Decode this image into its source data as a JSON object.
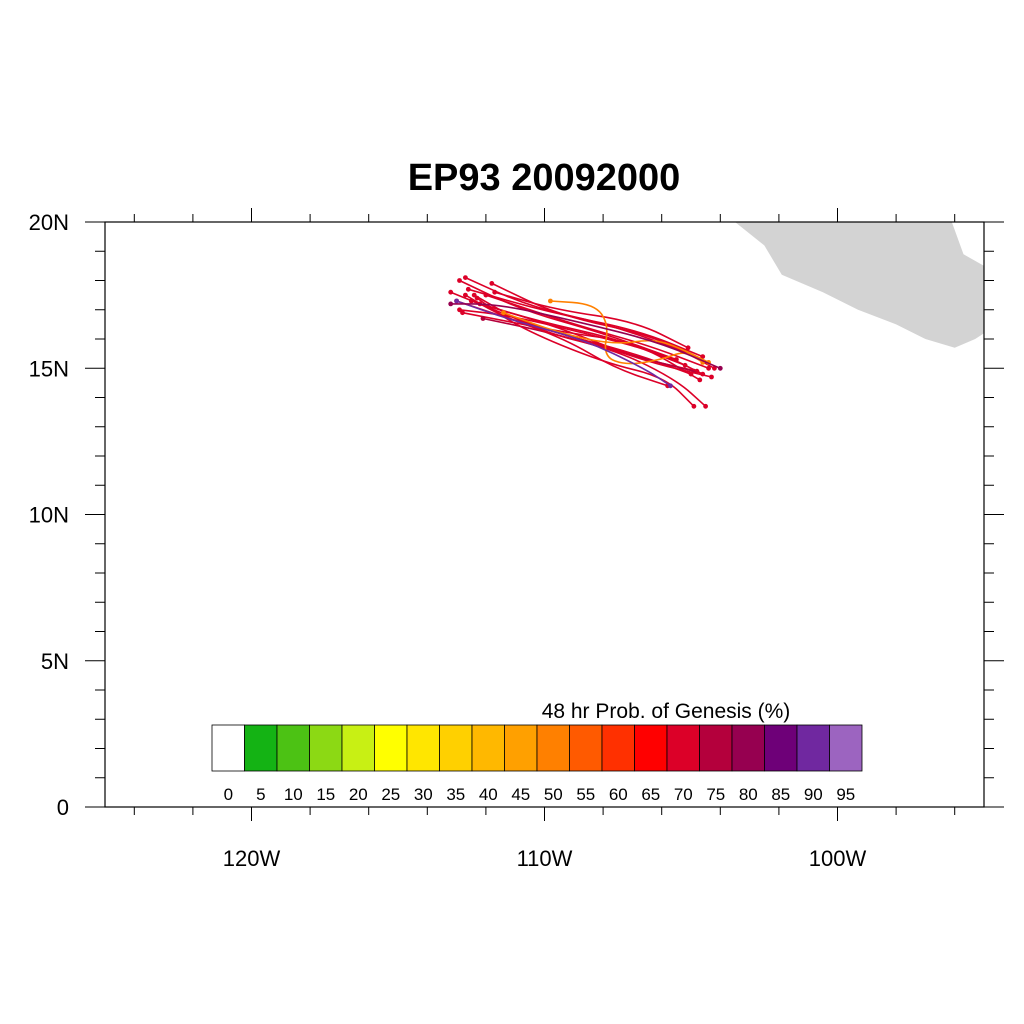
{
  "title": "EP93 20092000",
  "map": {
    "lon_range": [
      -125,
      -95
    ],
    "lat_range": [
      0,
      20
    ],
    "lat_ticks": [
      {
        "value": 20,
        "label": "20N"
      },
      {
        "value": 15,
        "label": "15N"
      },
      {
        "value": 10,
        "label": "10N"
      },
      {
        "value": 5,
        "label": "5N"
      },
      {
        "value": 0,
        "label": "0"
      }
    ],
    "lon_ticks": [
      {
        "value": -120,
        "label": "120W"
      },
      {
        "value": -110,
        "label": "110W"
      },
      {
        "value": -100,
        "label": "100W"
      }
    ],
    "land_color": "#d3d3d3",
    "land_outline": [
      [
        -103.5,
        20
      ],
      [
        -102.5,
        19.2
      ],
      [
        -101.9,
        18.2
      ],
      [
        -100.5,
        17.6
      ],
      [
        -99.3,
        17.0
      ],
      [
        -98.0,
        16.5
      ],
      [
        -97.0,
        16.0
      ],
      [
        -96.0,
        15.7
      ],
      [
        -95.3,
        16.0
      ],
      [
        -95.0,
        16.2
      ],
      [
        -95.0,
        18.5
      ],
      [
        -95.7,
        18.9
      ],
      [
        -96.1,
        20
      ]
    ]
  },
  "colorbar": {
    "title": "48 hr Prob. of Genesis (%)",
    "labels": [
      "0",
      "5",
      "10",
      "15",
      "20",
      "25",
      "30",
      "35",
      "40",
      "45",
      "50",
      "55",
      "60",
      "65",
      "70",
      "75",
      "80",
      "85",
      "90",
      "95"
    ],
    "colors": [
      "#ffffff",
      "#14b314",
      "#4cc214",
      "#8cd914",
      "#c8f014",
      "#ffff00",
      "#ffe600",
      "#ffd000",
      "#ffb800",
      "#ffa000",
      "#ff8000",
      "#ff5a00",
      "#ff3000",
      "#ff0000",
      "#dc0028",
      "#b4003c",
      "#960050",
      "#6e0078",
      "#7028a0",
      "#9c64c0"
    ]
  },
  "tracks": [
    {
      "color": "#dc0028",
      "points": [
        [
          -105.2,
          15.1
        ],
        [
          -107.5,
          16.0
        ],
        [
          -110.2,
          16.6
        ],
        [
          -112.5,
          17.3
        ]
      ]
    },
    {
      "color": "#dc0028",
      "points": [
        [
          -104.8,
          14.9
        ],
        [
          -107.0,
          15.4
        ],
        [
          -109.5,
          16.4
        ],
        [
          -112.2,
          17.2
        ]
      ]
    },
    {
      "color": "#dc0028",
      "points": [
        [
          -105.5,
          15.3
        ],
        [
          -108.0,
          16.2
        ],
        [
          -110.8,
          17.0
        ],
        [
          -112.9,
          18.0
        ]
      ]
    },
    {
      "color": "#dc0028",
      "points": [
        [
          -104.6,
          15.4
        ],
        [
          -106.8,
          16.3
        ],
        [
          -109.8,
          16.9
        ],
        [
          -112.6,
          17.7
        ]
      ]
    },
    {
      "color": "#dc0028",
      "points": [
        [
          -104.4,
          15.0
        ],
        [
          -106.5,
          15.8
        ],
        [
          -109.0,
          16.5
        ],
        [
          -112.0,
          17.5
        ]
      ]
    },
    {
      "color": "#dc0028",
      "points": [
        [
          -105.0,
          14.8
        ],
        [
          -107.2,
          15.6
        ],
        [
          -110.0,
          16.3
        ],
        [
          -113.2,
          17.6
        ]
      ]
    },
    {
      "color": "#dc0028",
      "points": [
        [
          -104.7,
          14.6
        ],
        [
          -106.9,
          15.9
        ],
        [
          -109.2,
          16.2
        ],
        [
          -112.8,
          16.9
        ]
      ]
    },
    {
      "color": "#dc0028",
      "points": [
        [
          -105.3,
          15.6
        ],
        [
          -107.8,
          16.5
        ],
        [
          -110.5,
          17.1
        ],
        [
          -112.7,
          18.1
        ]
      ]
    },
    {
      "color": "#dc0028",
      "points": [
        [
          -104.2,
          15.0
        ],
        [
          -106.2,
          16.1
        ],
        [
          -109.5,
          16.8
        ],
        [
          -111.8,
          17.9
        ]
      ]
    },
    {
      "color": "#b4003c",
      "points": [
        [
          -104.9,
          14.9
        ],
        [
          -107.3,
          15.5
        ],
        [
          -109.7,
          16.2
        ],
        [
          -112.1,
          16.7
        ]
      ]
    },
    {
      "color": "#dc0028",
      "points": [
        [
          -104.5,
          13.7
        ],
        [
          -105.5,
          14.6
        ],
        [
          -107.5,
          15.6
        ],
        [
          -110.3,
          16.3
        ],
        [
          -112.4,
          17.5
        ]
      ]
    },
    {
      "color": "#dc0028",
      "points": [
        [
          -104.9,
          13.7
        ],
        [
          -105.9,
          14.7
        ],
        [
          -108.0,
          15.2
        ],
        [
          -110.9,
          16.4
        ],
        [
          -112.3,
          17.4
        ]
      ]
    },
    {
      "color": "#dc0028",
      "points": [
        [
          -105.8,
          14.4
        ],
        [
          -107.6,
          15.0
        ],
        [
          -109.3,
          16.0
        ],
        [
          -111.5,
          16.8
        ],
        [
          -112.7,
          17.5
        ]
      ]
    },
    {
      "color": "#dc0028",
      "points": [
        [
          -104.3,
          14.7
        ],
        [
          -106.4,
          15.2
        ],
        [
          -108.4,
          15.9
        ],
        [
          -110.6,
          16.5
        ],
        [
          -113.0,
          17.3
        ]
      ]
    },
    {
      "color": "#dc0028",
      "points": [
        [
          -105.1,
          15.7
        ],
        [
          -106.9,
          16.6
        ],
        [
          -109.6,
          17.0
        ],
        [
          -111.7,
          17.6
        ]
      ]
    },
    {
      "color": "#dc0028",
      "points": [
        [
          -104.6,
          14.8
        ],
        [
          -106.0,
          15.5
        ],
        [
          -108.6,
          16.2
        ],
        [
          -111.2,
          16.8
        ],
        [
          -112.9,
          17.0
        ]
      ]
    },
    {
      "color": "#ff8000",
      "points": [
        [
          -104.6,
          15.2
        ],
        [
          -105.2,
          15.6
        ],
        [
          -106.0,
          15.3
        ],
        [
          -107.2,
          15.1
        ],
        [
          -108.0,
          15.4
        ],
        [
          -107.8,
          16.5
        ],
        [
          -108.3,
          17.2
        ],
        [
          -109.8,
          17.3
        ]
      ]
    },
    {
      "color": "#ff8000",
      "points": [
        [
          -104.4,
          15.2
        ],
        [
          -105.4,
          15.7
        ],
        [
          -106.3,
          16.0
        ],
        [
          -107.6,
          15.8
        ],
        [
          -109.5,
          16.2
        ],
        [
          -111.4,
          16.9
        ]
      ]
    },
    {
      "color": "#7028a0",
      "points": [
        [
          -105.7,
          14.4
        ],
        [
          -106.6,
          15.0
        ],
        [
          -108.7,
          16.0
        ],
        [
          -111.0,
          16.6
        ],
        [
          -113.0,
          17.3
        ]
      ]
    },
    {
      "color": "#960050",
      "points": [
        [
          -104.0,
          15.0
        ],
        [
          -106.1,
          15.9
        ],
        [
          -108.9,
          16.6
        ],
        [
          -111.6,
          17.2
        ],
        [
          -113.2,
          17.2
        ]
      ]
    }
  ]
}
